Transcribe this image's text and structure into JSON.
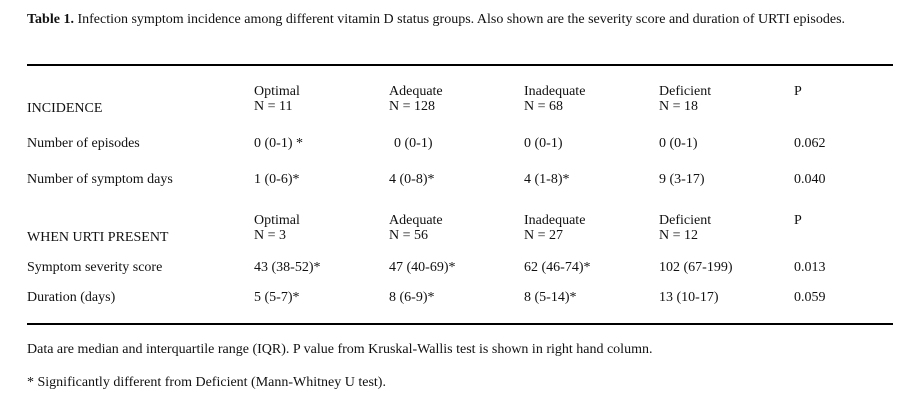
{
  "caption": {
    "label": "Table 1.",
    "text": " Infection symptom incidence among different vitamin D status groups. Also shown are the severity score and duration of URTI episodes."
  },
  "sections": [
    {
      "title": "INCIDENCE",
      "groups": [
        {
          "name": "Optimal",
          "n": "N = 11"
        },
        {
          "name": "Adequate",
          "n": "N = 128"
        },
        {
          "name": "Inadequate",
          "n": "N = 68"
        },
        {
          "name": "Deficient",
          "n": "N = 18"
        }
      ],
      "p_label": "P",
      "rows": [
        {
          "label": "Number of episodes",
          "values": [
            "0 (0-1) *",
            "0 (0-1)",
            "0 (0-1)",
            "0 (0-1)"
          ],
          "p": "0.062"
        },
        {
          "label": "Number of symptom days",
          "values": [
            "1 (0-6)*",
            "4 (0-8)*",
            "4 (1-8)*",
            "9 (3-17)"
          ],
          "p": "0.040"
        }
      ]
    },
    {
      "title": "WHEN URTI PRESENT",
      "groups": [
        {
          "name": "Optimal",
          "n": "N = 3"
        },
        {
          "name": "Adequate",
          "n": "N = 56"
        },
        {
          "name": "Inadequate",
          "n": "N = 27"
        },
        {
          "name": "Deficient",
          "n": "N = 12"
        }
      ],
      "p_label": "P",
      "rows": [
        {
          "label": "Symptom severity score",
          "values": [
            "43 (38-52)*",
            "47 (40-69)*",
            "62 (46-74)*",
            "102 (67-199)"
          ],
          "p": "0.013"
        },
        {
          "label": "Duration (days)",
          "values": [
            "5 (5-7)*",
            "8 (6-9)*",
            "8 (5-14)*",
            "13 (10-17)"
          ],
          "p": "0.059"
        }
      ]
    }
  ],
  "notes": [
    "Data are median and interquartile range (IQR). P value from Kruskal-Wallis test is shown in right hand column.",
    "* Significantly different from Deficient (Mann-Whitney U test)."
  ]
}
